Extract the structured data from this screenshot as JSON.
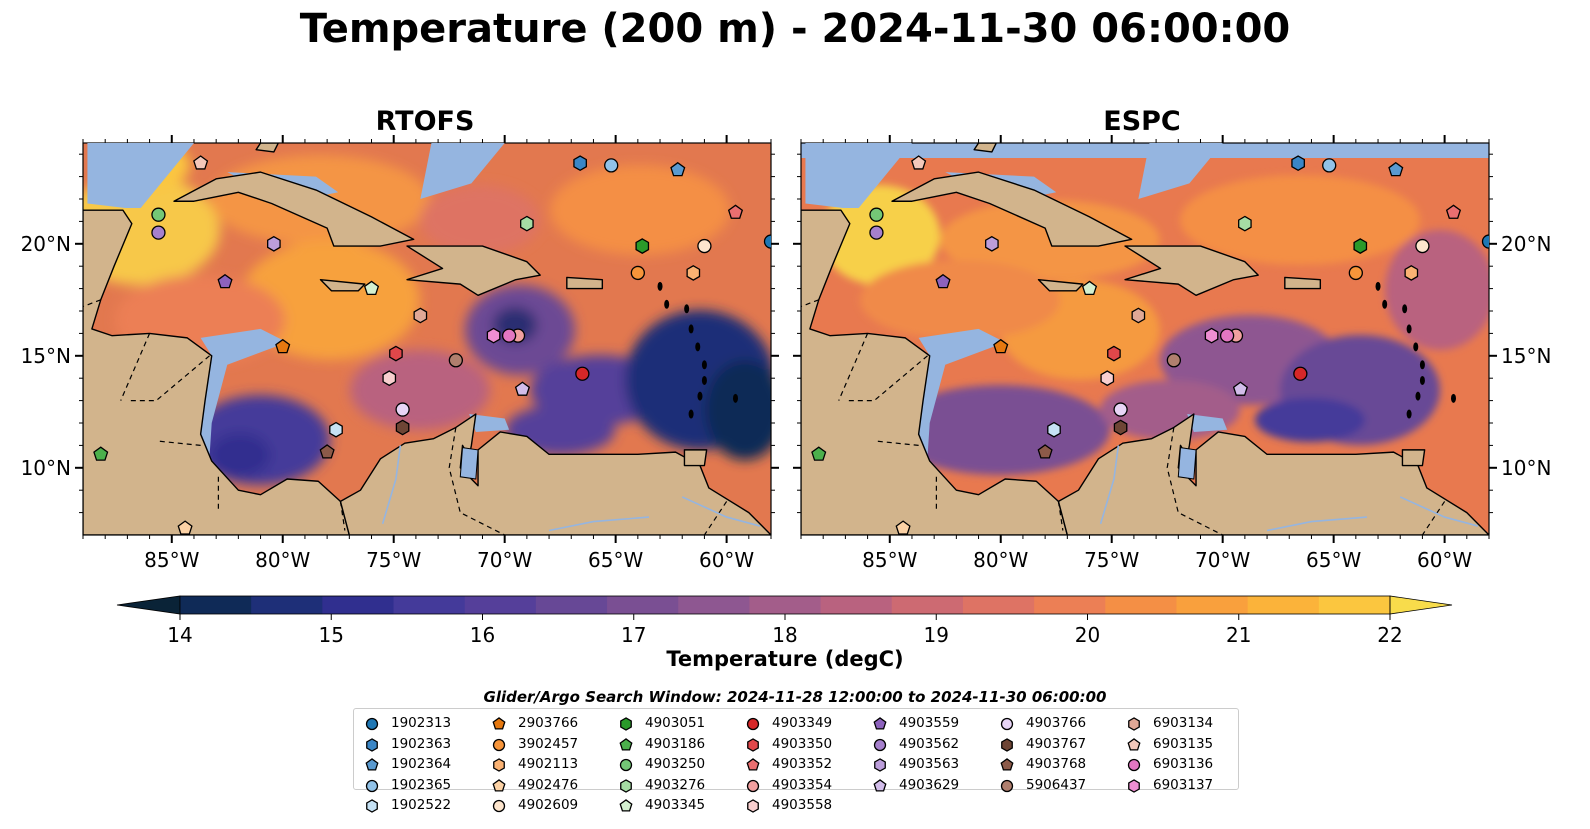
{
  "title": "Temperature (200 m) - 2024-11-30 06:00:00",
  "panels": [
    {
      "title": "RTOFS"
    },
    {
      "title": "ESPC"
    }
  ],
  "x_ticks": [
    "85°W",
    "80°W",
    "75°W",
    "70°W",
    "65°W",
    "60°W"
  ],
  "y_ticks": [
    "20°N",
    "15°N",
    "10°N"
  ],
  "map_extent": {
    "lon": [
      -89.0,
      -58.0
    ],
    "lat": [
      7.0,
      24.5
    ]
  },
  "colorbar": {
    "label": "Temperature (degC)",
    "ticks": [
      "14",
      "15",
      "16",
      "17",
      "18",
      "19",
      "20",
      "21",
      "22"
    ],
    "range": [
      14,
      22
    ],
    "extend": "both",
    "colors": [
      "#0a2337",
      "#0f2a57",
      "#1e2f78",
      "#302f8f",
      "#443a9a",
      "#553f9a",
      "#674896",
      "#7a4f93",
      "#8e5791",
      "#a35d8a",
      "#b9627f",
      "#cd6a72",
      "#de7364",
      "#ec7f55",
      "#f48f45",
      "#f9a03d",
      "#fbb33a",
      "#fbc63f",
      "#f8dc4b"
    ]
  },
  "colors": {
    "land": "#d2b48c",
    "shallow_water": "#95b5e0",
    "deep": "#0a2337"
  },
  "search_window": "Glider/Argo Search Window: 2024-11-28 12:00:00 to 2024-11-30 06:00:00",
  "legend": {
    "columns": [
      [
        {
          "id": "1902313",
          "marker": "circle",
          "color": "#1f77b4"
        },
        {
          "id": "1902363",
          "marker": "hexagon",
          "color": "#3a86c6"
        },
        {
          "id": "1902364",
          "marker": "pentagon",
          "color": "#5a9ad0"
        },
        {
          "id": "1902365",
          "marker": "circle",
          "color": "#91c2e8"
        },
        {
          "id": "1902522",
          "marker": "hexagon",
          "color": "#c6e2f5"
        }
      ],
      [
        {
          "id": "2903766",
          "marker": "pentagon",
          "color": "#e6780f"
        },
        {
          "id": "3902457",
          "marker": "circle",
          "color": "#f7953a"
        },
        {
          "id": "4902113",
          "marker": "hexagon",
          "color": "#fab273"
        },
        {
          "id": "4902476",
          "marker": "pentagon",
          "color": "#fcd2a5"
        },
        {
          "id": "4902609",
          "marker": "circle",
          "color": "#fde5cd"
        }
      ],
      [
        {
          "id": "4903051",
          "marker": "hexagon",
          "color": "#2a9a2a"
        },
        {
          "id": "4903186",
          "marker": "pentagon",
          "color": "#4cb04c"
        },
        {
          "id": "4903250",
          "marker": "circle",
          "color": "#74c776"
        },
        {
          "id": "4903276",
          "marker": "hexagon",
          "color": "#a6dca4"
        },
        {
          "id": "4903345",
          "marker": "pentagon",
          "color": "#d4f0d0"
        }
      ],
      [
        {
          "id": "4903349",
          "marker": "circle",
          "color": "#d62728"
        },
        {
          "id": "4903350",
          "marker": "hexagon",
          "color": "#e0474a"
        },
        {
          "id": "4903352",
          "marker": "pentagon",
          "color": "#ea6f70"
        },
        {
          "id": "4903354",
          "marker": "circle",
          "color": "#f2a0a0"
        },
        {
          "id": "4903558",
          "marker": "hexagon",
          "color": "#f8cfcf"
        }
      ],
      [
        {
          "id": "4903559",
          "marker": "pentagon",
          "color": "#8d62bd"
        },
        {
          "id": "4903562",
          "marker": "circle",
          "color": "#a680cd"
        },
        {
          "id": "4903563",
          "marker": "hexagon",
          "color": "#bc9edb"
        },
        {
          "id": "4903629",
          "marker": "pentagon",
          "color": "#d2bdea"
        }
      ],
      [
        {
          "id": "4903766",
          "marker": "circle",
          "color": "#e8d5f6"
        },
        {
          "id": "4903767",
          "marker": "hexagon",
          "color": "#6e4535"
        },
        {
          "id": "4903768",
          "marker": "pentagon",
          "color": "#8c5a49"
        },
        {
          "id": "5906437",
          "marker": "circle",
          "color": "#b07f6e"
        }
      ],
      [
        {
          "id": "6903134",
          "marker": "hexagon",
          "color": "#e0a896"
        },
        {
          "id": "6903135",
          "marker": "pentagon",
          "color": "#f3c8ba"
        },
        {
          "id": "6903136",
          "marker": "circle",
          "color": "#e377c2"
        },
        {
          "id": "6903137",
          "marker": "hexagon",
          "color": "#ee8ed2"
        }
      ]
    ]
  },
  "floats": [
    {
      "id": "1902313",
      "lon": -58.0,
      "lat": 20.1
    },
    {
      "id": "1902363",
      "lon": -66.6,
      "lat": 23.6
    },
    {
      "id": "1902364",
      "lon": -62.2,
      "lat": 23.3
    },
    {
      "id": "1902365",
      "lon": -65.2,
      "lat": 23.5
    },
    {
      "id": "1902522",
      "lon": -77.6,
      "lat": 11.7
    },
    {
      "id": "2903766",
      "lon": -80.0,
      "lat": 15.4
    },
    {
      "id": "3902457",
      "lon": -64.0,
      "lat": 18.7
    },
    {
      "id": "4902113",
      "lon": -61.5,
      "lat": 18.7
    },
    {
      "id": "4902476",
      "lon": -84.4,
      "lat": 7.3
    },
    {
      "id": "4902609",
      "lon": -61.0,
      "lat": 19.9
    },
    {
      "id": "4903051",
      "lon": -63.8,
      "lat": 19.9
    },
    {
      "id": "4903186",
      "lon": -88.2,
      "lat": 10.6
    },
    {
      "id": "4903250",
      "lon": -85.6,
      "lat": 21.3
    },
    {
      "id": "4903276",
      "lon": -69.0,
      "lat": 20.9
    },
    {
      "id": "4903345",
      "lon": -76.0,
      "lat": 18.0
    },
    {
      "id": "4903349",
      "lon": -66.5,
      "lat": 14.2
    },
    {
      "id": "4903350",
      "lon": -74.9,
      "lat": 15.1
    },
    {
      "id": "4903352",
      "lon": -59.6,
      "lat": 21.4
    },
    {
      "id": "4903354",
      "lon": -69.4,
      "lat": 15.9
    },
    {
      "id": "4903558",
      "lon": -75.2,
      "lat": 14.0
    },
    {
      "id": "4903559",
      "lon": -82.6,
      "lat": 18.3
    },
    {
      "id": "4903562",
      "lon": -85.6,
      "lat": 20.5
    },
    {
      "id": "4903563",
      "lon": -80.4,
      "lat": 20.0
    },
    {
      "id": "4903629",
      "lon": -69.2,
      "lat": 13.5
    },
    {
      "id": "4903766",
      "lon": -74.6,
      "lat": 12.6
    },
    {
      "id": "4903767",
      "lon": -74.6,
      "lat": 11.8
    },
    {
      "id": "4903768",
      "lon": -78.0,
      "lat": 10.7
    },
    {
      "id": "5906437",
      "lon": -72.2,
      "lat": 14.8
    },
    {
      "id": "6903134",
      "lon": -73.8,
      "lat": 16.8
    },
    {
      "id": "6903135",
      "lon": -83.7,
      "lat": 23.6
    },
    {
      "id": "6903136",
      "lon": -69.8,
      "lat": 15.9
    },
    {
      "id": "6903137",
      "lon": -70.5,
      "lat": 15.9
    }
  ]
}
